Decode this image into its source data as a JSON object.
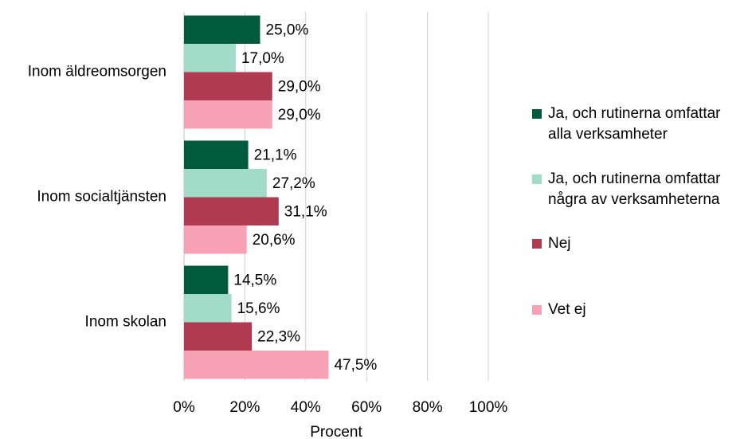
{
  "chart_data": {
    "type": "bar",
    "orientation": "horizontal",
    "categories": [
      "Inom äldreomsorgen",
      "Inom socialtjänsten",
      "Inom skolan"
    ],
    "series": [
      {
        "name": "Ja, och rutinerna omfattar alla verksamheter",
        "color": "#005a3c",
        "values": [
          25.0,
          21.1,
          14.5
        ],
        "value_labels": [
          "25,0%",
          "21,1%",
          "14,5%"
        ]
      },
      {
        "name": "Ja, och rutinerna omfattar några av verksamheterna",
        "color": "#a0dcc8",
        "values": [
          17.0,
          27.2,
          15.6
        ],
        "value_labels": [
          "17,0%",
          "27,2%",
          "15,6%"
        ]
      },
      {
        "name": "Nej",
        "color": "#b03a50",
        "values": [
          29.0,
          31.1,
          22.3
        ],
        "value_labels": [
          "29,0%",
          "31,1%",
          "22,3%"
        ]
      },
      {
        "name": "Vet ej",
        "color": "#f9a1b4",
        "values": [
          29.0,
          20.6,
          47.5
        ],
        "value_labels": [
          "29,0%",
          "20,6%",
          "47,5%"
        ]
      }
    ],
    "xlabel": "Procent",
    "xlim": [
      0,
      100
    ],
    "xticks": [
      {
        "value": 0,
        "label": "0%"
      },
      {
        "value": 20,
        "label": "20%"
      },
      {
        "value": 40,
        "label": "40%"
      },
      {
        "value": 60,
        "label": "60%"
      },
      {
        "value": 80,
        "label": "80%"
      },
      {
        "value": 100,
        "label": "100%"
      }
    ],
    "grid": true,
    "legend": "right"
  }
}
